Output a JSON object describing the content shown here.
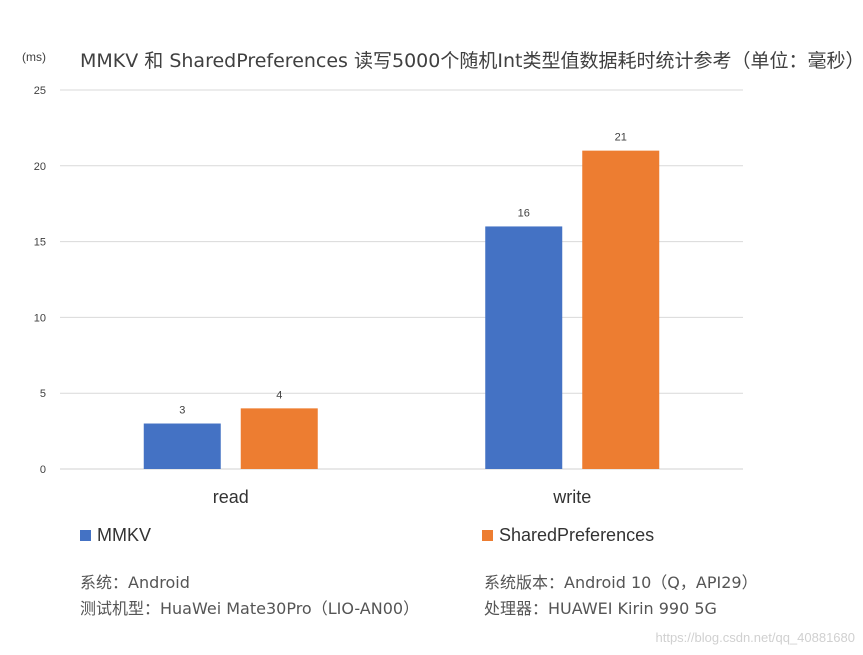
{
  "unit_label": "(ms)",
  "colors": {
    "mmkv": "#4472C4",
    "sp": "#ED7D31",
    "grid": "#D9D9D9",
    "text": "#404040"
  },
  "notes": {
    "system": "系统：Android",
    "system_version": "系统版本：Android 10（Q，API29）",
    "device": "测试机型：HuaWei Mate30Pro（LIO-AN00）",
    "processor": "处理器：HUAWEI Kirin 990 5G"
  },
  "watermark": "https://blog.csdn.net/qq_40881680",
  "chart_data": {
    "type": "bar",
    "title": "MMKV 和 SharedPreferences 读写5000个随机Int类型值数据耗时统计参考（单位：毫秒）",
    "categories": [
      "read",
      "write"
    ],
    "series": [
      {
        "name": "MMKV",
        "values": [
          3,
          16
        ]
      },
      {
        "name": "SharedPreferences",
        "values": [
          4,
          21
        ]
      }
    ],
    "ylim": [
      0,
      25
    ],
    "yticks": [
      0,
      5,
      10,
      15,
      20,
      25
    ],
    "grid": true,
    "legend": "bottom"
  }
}
